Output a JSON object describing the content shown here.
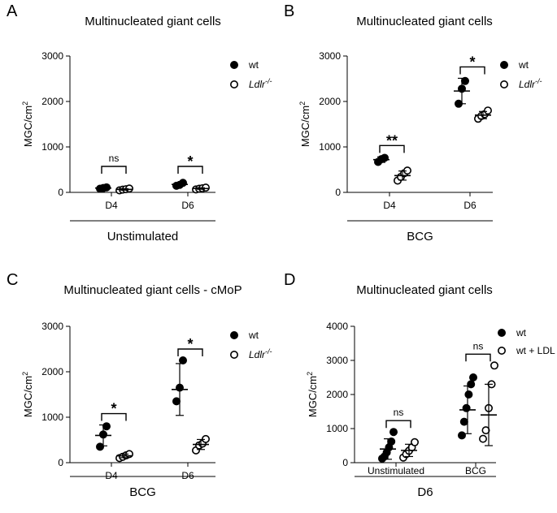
{
  "chart_data": [
    {
      "panel": "A",
      "type": "scatter",
      "title": "Multinucleated giant cells",
      "ylabel": "MGC/cm",
      "ylabel_sup": "2",
      "ylim": [
        0,
        3000
      ],
      "yticks": [
        0,
        1000,
        2000,
        3000
      ],
      "categories": [
        "D4",
        "D6"
      ],
      "group_label": "Unstimulated",
      "legend": [
        {
          "name": "wt",
          "sup": "",
          "filled": true
        },
        {
          "name": "Ldlr",
          "sup": "-/-",
          "filled": false,
          "italic": true
        }
      ],
      "series": [
        {
          "name": "wt",
          "filled": true,
          "points": [
            [
              80,
              95,
              110
            ],
            [
              145,
              165,
              210
            ]
          ],
          "mean": [
            95,
            175
          ],
          "sd": [
            15,
            32
          ]
        },
        {
          "name": "Ldlr-/-",
          "filled": false,
          "points": [
            [
              45,
              60,
              70,
              85
            ],
            [
              65,
              80,
              90,
              105
            ]
          ],
          "mean": [
            65,
            85
          ],
          "sd": [
            17,
            17
          ]
        }
      ],
      "sig": [
        "ns",
        "*"
      ]
    },
    {
      "panel": "B",
      "type": "scatter",
      "title": "Multinucleated giant cells",
      "ylabel": "MGC/cm",
      "ylabel_sup": "2",
      "ylim": [
        0,
        3000
      ],
      "yticks": [
        0,
        1000,
        2000,
        3000
      ],
      "categories": [
        "D4",
        "D6"
      ],
      "group_label": "BCG",
      "legend": [
        {
          "name": "wt",
          "sup": "",
          "filled": true
        },
        {
          "name": "Ldlr",
          "sup": "-/-",
          "filled": false,
          "italic": true
        }
      ],
      "series": [
        {
          "name": "wt",
          "filled": true,
          "points": [
            [
              670,
              730,
              760
            ],
            [
              1950,
              2280,
              2450
            ]
          ],
          "mean": [
            720,
            2230
          ],
          "sd": [
            60,
            280
          ]
        },
        {
          "name": "Ldlr-/-",
          "filled": false,
          "points": [
            [
              260,
              340,
              420,
              480
            ],
            [
              1620,
              1680,
              1720,
              1800
            ]
          ],
          "mean": [
            370,
            1700
          ],
          "sd": [
            100,
            80
          ]
        }
      ],
      "sig": [
        "**",
        "*"
      ]
    },
    {
      "panel": "C",
      "type": "scatter",
      "title": "Multinucleated giant cells - cMoP",
      "ylabel": "MGC/cm",
      "ylabel_sup": "2",
      "ylim": [
        0,
        3000
      ],
      "yticks": [
        0,
        1000,
        2000,
        3000
      ],
      "categories": [
        "D4",
        "D6"
      ],
      "group_label": "BCG",
      "legend": [
        {
          "name": "wt",
          "sup": "",
          "filled": true
        },
        {
          "name": "Ldlr",
          "sup": "-/-",
          "filled": false,
          "italic": true
        }
      ],
      "series": [
        {
          "name": "wt",
          "filled": true,
          "points": [
            [
              350,
              620,
              800
            ],
            [
              1350,
              1650,
              2250
            ]
          ],
          "mean": [
            600,
            1610
          ],
          "sd": [
            230,
            570
          ]
        },
        {
          "name": "Ldlr-/-",
          "filled": false,
          "points": [
            [
              100,
              130,
              160,
              190
            ],
            [
              270,
              380,
              420,
              520
            ]
          ],
          "mean": [
            150,
            400
          ],
          "sd": [
            40,
            110
          ]
        }
      ],
      "sig": [
        "*",
        "*"
      ]
    },
    {
      "panel": "D",
      "type": "scatter",
      "title": "Multinucleated giant cells",
      "ylabel": "MGC/cm",
      "ylabel_sup": "2",
      "ylim": [
        0,
        4000
      ],
      "yticks": [
        0,
        1000,
        2000,
        3000,
        4000
      ],
      "categories": [
        "Unstimulated",
        "BCG"
      ],
      "group_label": "D6",
      "legend": [
        {
          "name": "wt",
          "sup": "",
          "filled": true
        },
        {
          "name": "wt + LDL",
          "sup": "",
          "filled": false
        }
      ],
      "series": [
        {
          "name": "wt",
          "filled": true,
          "points": [
            [
              120,
              180,
              300,
              450,
              620,
              900
            ],
            [
              800,
              1200,
              1600,
              2000,
              2300,
              2500
            ]
          ],
          "mean": [
            400,
            1550
          ],
          "sd": [
            300,
            700
          ]
        },
        {
          "name": "wt + LDL",
          "filled": false,
          "points": [
            [
              150,
              250,
              350,
              450,
              600
            ],
            [
              700,
              950,
              1600,
              2300,
              2850
            ]
          ],
          "mean": [
            360,
            1400
          ],
          "sd": [
            180,
            900
          ]
        }
      ],
      "sig": [
        "ns",
        "ns"
      ]
    }
  ]
}
